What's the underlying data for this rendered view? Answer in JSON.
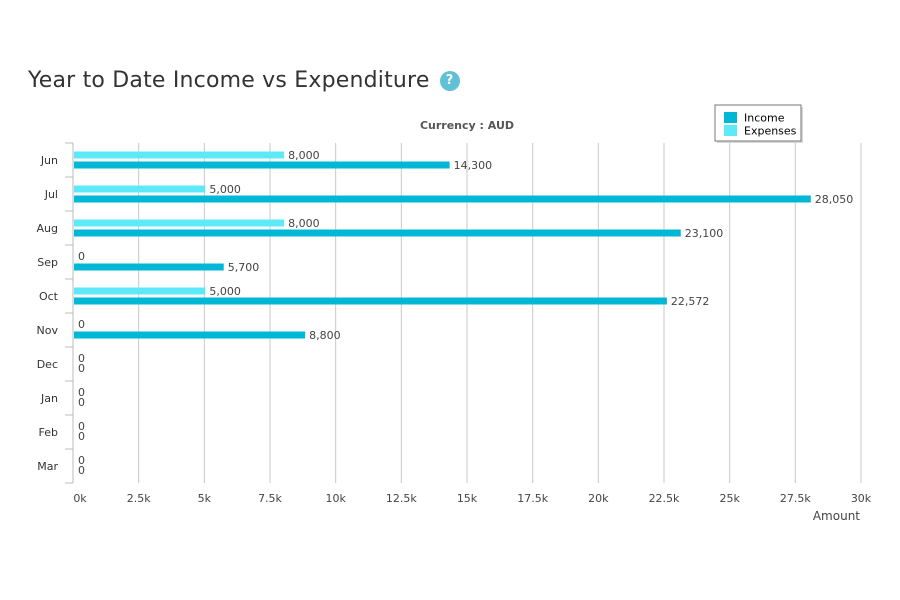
{
  "page": {
    "title": "Year to Date Income vs Expenditure",
    "help_icon": "?"
  },
  "chart_data": {
    "type": "bar",
    "orientation": "horizontal",
    "subtitle": "Currency : AUD",
    "xlabel": "Amount",
    "ylabel": "",
    "xlim": [
      0,
      30000
    ],
    "grid": true,
    "legend_position": "top-right",
    "categories": [
      "Jun",
      "Jul",
      "Aug",
      "Sep",
      "Oct",
      "Nov",
      "Dec",
      "Jan",
      "Feb",
      "Mar"
    ],
    "x_ticks": [
      "0k",
      "2.5k",
      "5k",
      "7.5k",
      "10k",
      "12.5k",
      "15k",
      "17.5k",
      "20k",
      "22.5k",
      "25k",
      "27.5k",
      "30k"
    ],
    "series": [
      {
        "name": "Expenses",
        "color": "#5ee9f9",
        "values": [
          8000,
          5000,
          8000,
          0,
          5000,
          0,
          0,
          0,
          0,
          0
        ],
        "labels": [
          "8,000",
          "5,000",
          "8,000",
          "0",
          "5,000",
          "0",
          "0",
          "0",
          "0",
          "0"
        ]
      },
      {
        "name": "Income",
        "color": "#00b8d6",
        "values": [
          14300,
          28050,
          23100,
          5700,
          22572,
          8800,
          0,
          0,
          0,
          0
        ],
        "labels": [
          "14,300",
          "28,050",
          "23,100",
          "5,700",
          "22,572",
          "8,800",
          "0",
          "0",
          "0",
          "0"
        ]
      }
    ],
    "legend_order": [
      "Income",
      "Expenses"
    ]
  }
}
